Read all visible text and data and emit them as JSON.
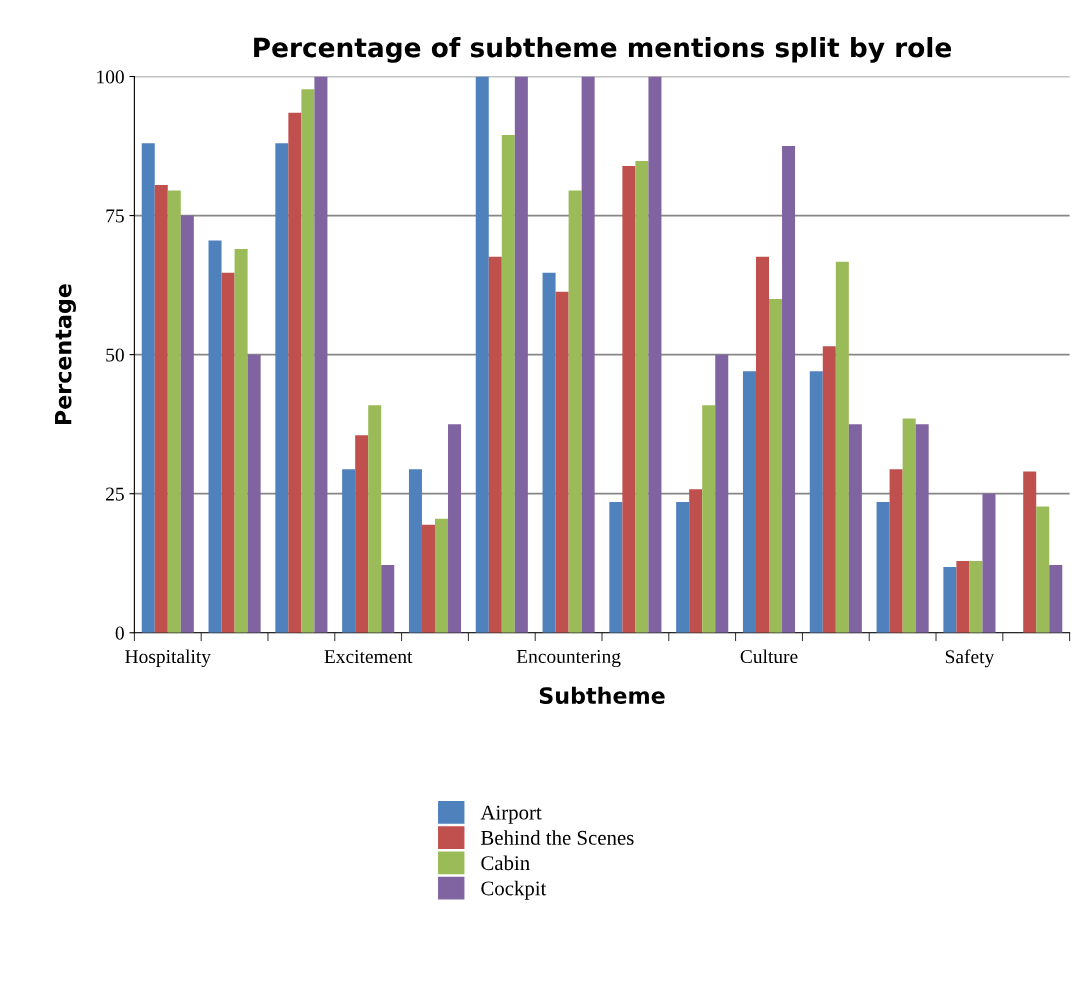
{
  "chart_data": {
    "type": "bar",
    "title": "Percentage of subtheme mentions split by role",
    "xlabel": "Subtheme",
    "ylabel": "Percentage",
    "categories": [
      "Hospitality",
      null,
      null,
      "Excitement",
      null,
      null,
      "Encountering",
      null,
      null,
      "Culture",
      null,
      null,
      "Safety",
      null
    ],
    "series": [
      {
        "name": "Airport",
        "color": "#4f81bd",
        "values": [
          88,
          70.5,
          88,
          29.4,
          29.4,
          100,
          64.7,
          23.5,
          23.5,
          47,
          47,
          23.5,
          11.8,
          0
        ]
      },
      {
        "name": "Behind the Scenes",
        "color": "#c0504d",
        "values": [
          80.5,
          64.7,
          93.5,
          35.5,
          19.4,
          67.6,
          61.3,
          83.9,
          25.8,
          67.6,
          51.5,
          29.4,
          12.9,
          29
        ]
      },
      {
        "name": "Cabin",
        "color": "#9bbb59",
        "values": [
          79.5,
          69,
          97.7,
          40.9,
          20.5,
          89.5,
          79.5,
          84.8,
          40.9,
          60,
          66.7,
          38.5,
          12.9,
          22.7
        ]
      },
      {
        "name": "Cockpit",
        "color": "#8064a2",
        "values": [
          75,
          50,
          100,
          12.2,
          37.5,
          100,
          100,
          100,
          50,
          87.5,
          37.5,
          37.5,
          25,
          12.2
        ]
      }
    ],
    "ylim": [
      0,
      100
    ],
    "yticks": [
      0,
      25,
      50,
      75,
      100
    ],
    "grid": "y",
    "legend": "bottom"
  }
}
